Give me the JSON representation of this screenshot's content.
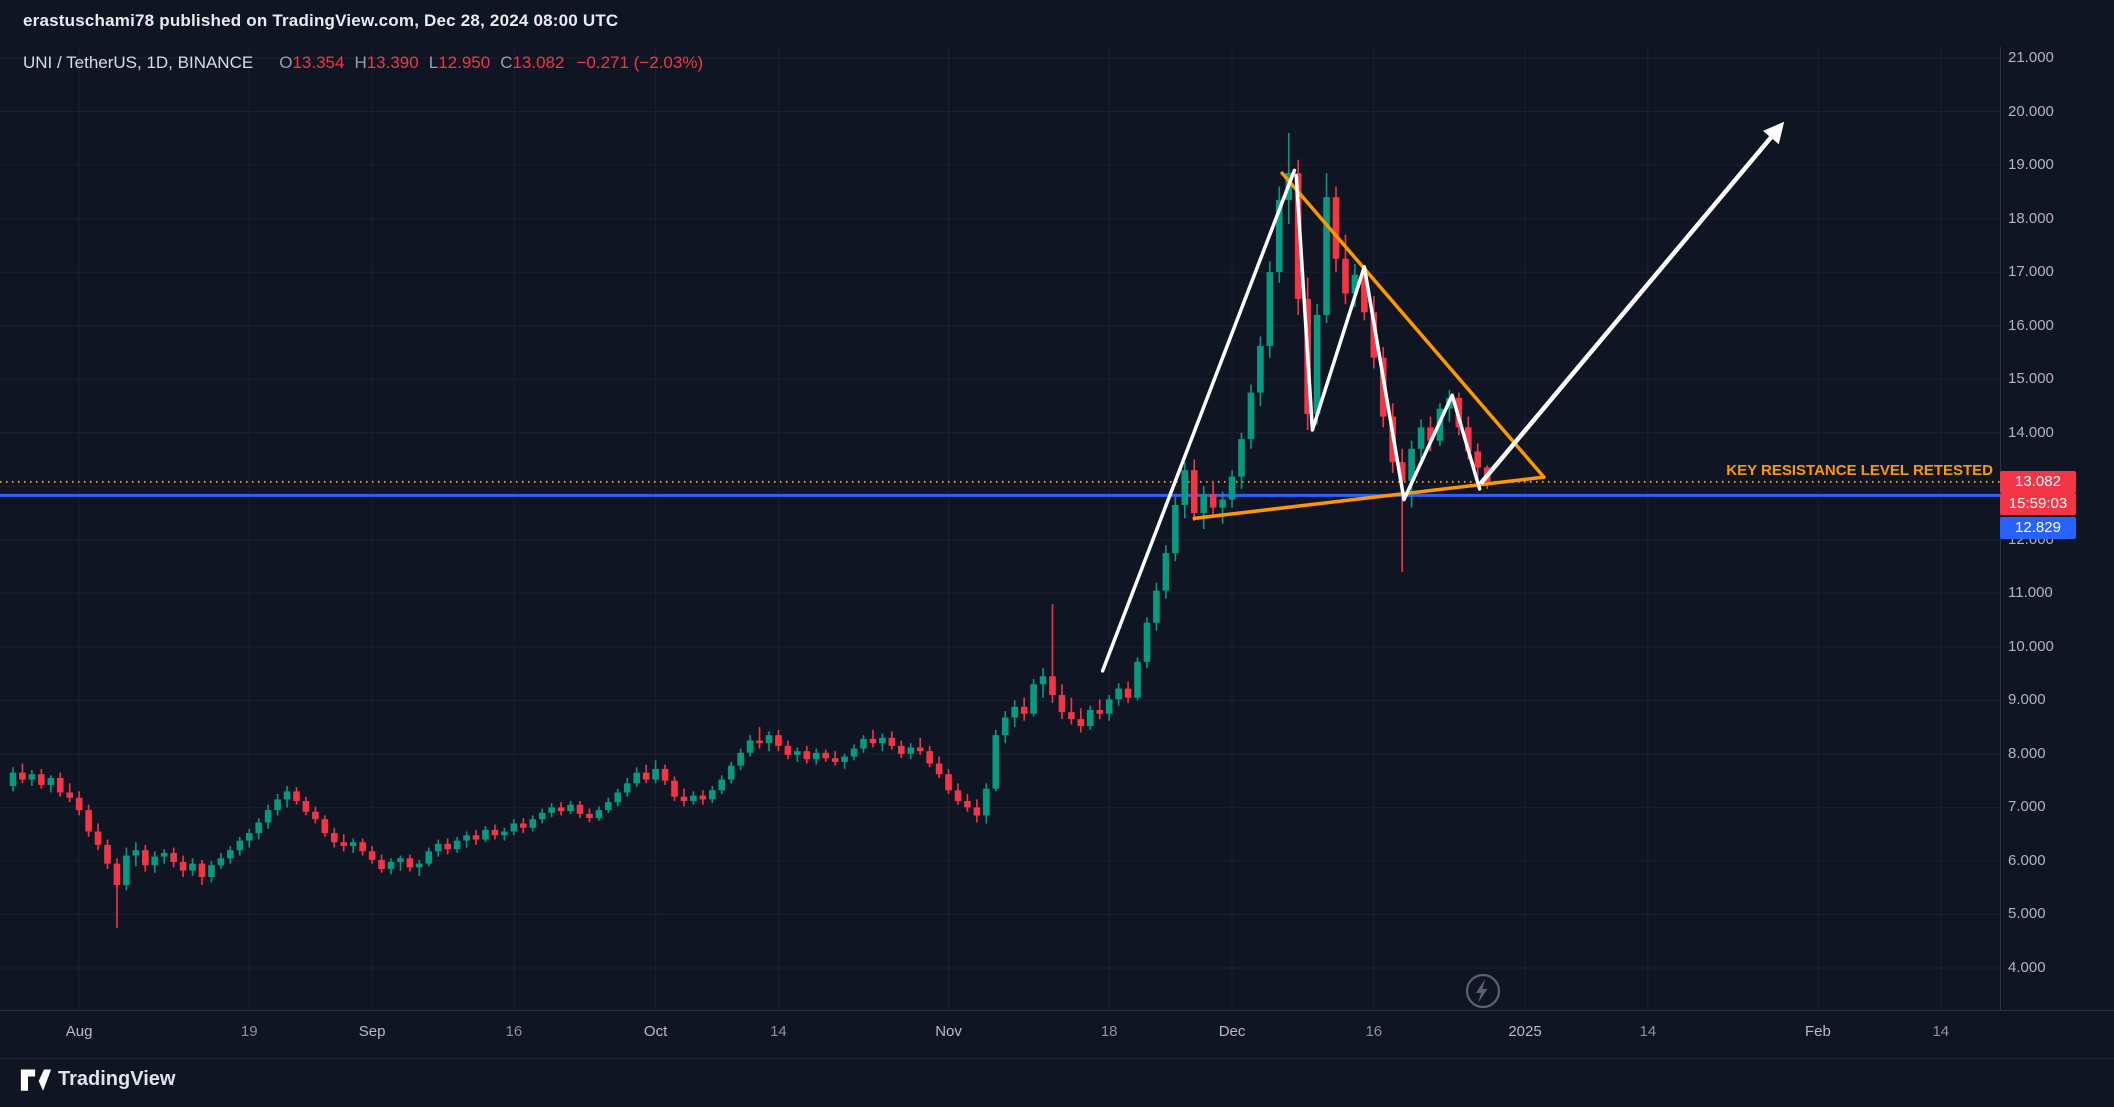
{
  "colors": {
    "background": "#0f1523",
    "up": "#089981",
    "down": "#f23645",
    "orange": "#ff9800",
    "blue": "#2962ff",
    "white": "#ffffff",
    "axis_text": "#b2b5be",
    "grid": "rgba(255,255,255,0.05)"
  },
  "header": {
    "publisher_line": "erastuschami78 published on TradingView.com, Dec 28, 2024 08:00 UTC"
  },
  "legend": {
    "symbol": "UNI / TetherUS, 1D, BINANCE",
    "o_label": "O",
    "o": "13.354",
    "h_label": "H",
    "h": "13.390",
    "l_label": "L",
    "l": "12.950",
    "c_label": "C",
    "c": "13.082",
    "change": "−0.271 (−2.03%)"
  },
  "chart_data": {
    "type": "candlestick",
    "symbol": "UNI/TetherUS",
    "exchange": "BINANCE",
    "timeframe": "1D",
    "ylim": [
      4,
      21
    ],
    "price_ticks": [
      21,
      20,
      19,
      18,
      17,
      16,
      15,
      14,
      13,
      12,
      11,
      10,
      9,
      8,
      7,
      6,
      5,
      4
    ],
    "time_ticks": [
      {
        "label": "Aug",
        "i": 7,
        "major": true
      },
      {
        "label": "19",
        "i": 25,
        "major": false
      },
      {
        "label": "Sep",
        "i": 38,
        "major": true
      },
      {
        "label": "16",
        "i": 53,
        "major": false
      },
      {
        "label": "Oct",
        "i": 68,
        "major": true
      },
      {
        "label": "14",
        "i": 81,
        "major": false
      },
      {
        "label": "Nov",
        "i": 99,
        "major": true
      },
      {
        "label": "18",
        "i": 116,
        "major": false
      },
      {
        "label": "Dec",
        "i": 129,
        "major": true
      },
      {
        "label": "16",
        "i": 144,
        "major": false
      },
      {
        "label": "2025",
        "i": 160,
        "major": true
      },
      {
        "label": "14",
        "i": 173,
        "major": false
      },
      {
        "label": "Feb",
        "i": 191,
        "major": true
      },
      {
        "label": "14",
        "i": 204,
        "major": false
      }
    ],
    "candles": [
      [
        7.4,
        7.75,
        7.3,
        7.65
      ],
      [
        7.65,
        7.82,
        7.45,
        7.52
      ],
      [
        7.52,
        7.7,
        7.4,
        7.62
      ],
      [
        7.62,
        7.72,
        7.35,
        7.42
      ],
      [
        7.42,
        7.6,
        7.28,
        7.55
      ],
      [
        7.55,
        7.65,
        7.2,
        7.28
      ],
      [
        7.28,
        7.45,
        7.1,
        7.18
      ],
      [
        7.18,
        7.3,
        6.85,
        6.95
      ],
      [
        6.95,
        7.05,
        6.45,
        6.55
      ],
      [
        6.55,
        6.7,
        6.2,
        6.3
      ],
      [
        6.3,
        6.4,
        5.85,
        5.95
      ],
      [
        5.95,
        6.05,
        4.75,
        5.55
      ],
      [
        5.55,
        6.25,
        5.45,
        6.1
      ],
      [
        6.1,
        6.35,
        5.9,
        6.2
      ],
      [
        6.2,
        6.3,
        5.8,
        5.92
      ],
      [
        5.92,
        6.18,
        5.78,
        6.08
      ],
      [
        6.08,
        6.22,
        5.95,
        6.15
      ],
      [
        6.15,
        6.25,
        5.88,
        5.98
      ],
      [
        5.98,
        6.1,
        5.7,
        5.82
      ],
      [
        5.82,
        6.05,
        5.72,
        5.95
      ],
      [
        5.95,
        6.02,
        5.55,
        5.7
      ],
      [
        5.7,
        6.0,
        5.6,
        5.92
      ],
      [
        5.92,
        6.15,
        5.85,
        6.05
      ],
      [
        6.05,
        6.28,
        5.95,
        6.2
      ],
      [
        6.2,
        6.45,
        6.1,
        6.38
      ],
      [
        6.38,
        6.6,
        6.25,
        6.52
      ],
      [
        6.52,
        6.8,
        6.4,
        6.72
      ],
      [
        6.72,
        7.05,
        6.6,
        6.95
      ],
      [
        6.95,
        7.25,
        6.85,
        7.15
      ],
      [
        7.15,
        7.4,
        7.0,
        7.3
      ],
      [
        7.3,
        7.38,
        7.05,
        7.12
      ],
      [
        7.12,
        7.2,
        6.85,
        6.92
      ],
      [
        6.92,
        7.02,
        6.7,
        6.78
      ],
      [
        6.78,
        6.85,
        6.45,
        6.52
      ],
      [
        6.52,
        6.62,
        6.25,
        6.35
      ],
      [
        6.35,
        6.5,
        6.18,
        6.28
      ],
      [
        6.28,
        6.42,
        6.15,
        6.35
      ],
      [
        6.35,
        6.42,
        6.1,
        6.18
      ],
      [
        6.18,
        6.28,
        5.95,
        6.02
      ],
      [
        6.02,
        6.12,
        5.78,
        5.85
      ],
      [
        5.85,
        6.05,
        5.75,
        5.98
      ],
      [
        5.98,
        6.1,
        5.82,
        6.05
      ],
      [
        6.05,
        6.12,
        5.8,
        5.88
      ],
      [
        5.88,
        6.02,
        5.72,
        5.95
      ],
      [
        5.95,
        6.25,
        5.9,
        6.18
      ],
      [
        6.18,
        6.4,
        6.08,
        6.32
      ],
      [
        6.32,
        6.42,
        6.12,
        6.22
      ],
      [
        6.22,
        6.45,
        6.15,
        6.38
      ],
      [
        6.38,
        6.55,
        6.25,
        6.48
      ],
      [
        6.48,
        6.58,
        6.3,
        6.4
      ],
      [
        6.4,
        6.65,
        6.35,
        6.58
      ],
      [
        6.58,
        6.68,
        6.4,
        6.48
      ],
      [
        6.48,
        6.62,
        6.38,
        6.55
      ],
      [
        6.55,
        6.78,
        6.48,
        6.7
      ],
      [
        6.7,
        6.8,
        6.52,
        6.62
      ],
      [
        6.62,
        6.85,
        6.55,
        6.78
      ],
      [
        6.78,
        6.98,
        6.7,
        6.9
      ],
      [
        6.9,
        7.08,
        6.82,
        7.0
      ],
      [
        7.0,
        7.1,
        6.85,
        6.93
      ],
      [
        6.93,
        7.12,
        6.88,
        7.05
      ],
      [
        7.05,
        7.12,
        6.8,
        6.88
      ],
      [
        6.88,
        6.98,
        6.72,
        6.8
      ],
      [
        6.8,
        7.02,
        6.75,
        6.95
      ],
      [
        6.95,
        7.18,
        6.9,
        7.1
      ],
      [
        7.1,
        7.35,
        7.02,
        7.28
      ],
      [
        7.28,
        7.55,
        7.2,
        7.45
      ],
      [
        7.45,
        7.75,
        7.38,
        7.65
      ],
      [
        7.65,
        7.8,
        7.45,
        7.52
      ],
      [
        7.52,
        7.88,
        7.45,
        7.72
      ],
      [
        7.72,
        7.8,
        7.42,
        7.5
      ],
      [
        7.5,
        7.58,
        7.12,
        7.2
      ],
      [
        7.2,
        7.35,
        7.02,
        7.12
      ],
      [
        7.12,
        7.3,
        7.05,
        7.22
      ],
      [
        7.22,
        7.32,
        7.05,
        7.15
      ],
      [
        7.15,
        7.4,
        7.08,
        7.32
      ],
      [
        7.32,
        7.6,
        7.25,
        7.52
      ],
      [
        7.52,
        7.85,
        7.45,
        7.78
      ],
      [
        7.78,
        8.1,
        7.7,
        8.02
      ],
      [
        8.02,
        8.35,
        7.95,
        8.25
      ],
      [
        8.25,
        8.5,
        8.1,
        8.2
      ],
      [
        8.2,
        8.42,
        8.05,
        8.35
      ],
      [
        8.35,
        8.45,
        8.05,
        8.15
      ],
      [
        8.15,
        8.25,
        7.9,
        7.98
      ],
      [
        7.98,
        8.12,
        7.85,
        8.05
      ],
      [
        8.05,
        8.15,
        7.82,
        7.9
      ],
      [
        7.9,
        8.1,
        7.8,
        8.02
      ],
      [
        8.02,
        8.08,
        7.85,
        7.92
      ],
      [
        7.92,
        8.05,
        7.78,
        7.85
      ],
      [
        7.85,
        8.0,
        7.72,
        7.95
      ],
      [
        7.95,
        8.18,
        7.88,
        8.1
      ],
      [
        8.1,
        8.35,
        8.02,
        8.28
      ],
      [
        8.28,
        8.45,
        8.12,
        8.2
      ],
      [
        8.2,
        8.38,
        8.05,
        8.3
      ],
      [
        8.3,
        8.42,
        8.08,
        8.15
      ],
      [
        8.15,
        8.25,
        7.92,
        8.0
      ],
      [
        8.0,
        8.2,
        7.9,
        8.12
      ],
      [
        8.12,
        8.3,
        7.98,
        8.05
      ],
      [
        8.05,
        8.15,
        7.75,
        7.82
      ],
      [
        7.82,
        7.95,
        7.55,
        7.62
      ],
      [
        7.62,
        7.72,
        7.25,
        7.32
      ],
      [
        7.32,
        7.45,
        7.05,
        7.12
      ],
      [
        7.12,
        7.25,
        6.92,
        7.0
      ],
      [
        7.0,
        7.15,
        6.72,
        6.85
      ],
      [
        6.85,
        7.45,
        6.7,
        7.35
      ],
      [
        7.35,
        8.45,
        7.3,
        8.35
      ],
      [
        8.35,
        8.8,
        8.2,
        8.68
      ],
      [
        8.68,
        9.0,
        8.5,
        8.88
      ],
      [
        8.88,
        9.05,
        8.62,
        8.75
      ],
      [
        8.75,
        9.4,
        8.7,
        9.3
      ],
      [
        9.3,
        9.6,
        9.05,
        9.45
      ],
      [
        9.45,
        10.8,
        8.95,
        9.1
      ],
      [
        9.1,
        9.3,
        8.65,
        8.78
      ],
      [
        8.78,
        9.05,
        8.55,
        8.65
      ],
      [
        8.65,
        8.85,
        8.4,
        8.52
      ],
      [
        8.52,
        8.9,
        8.45,
        8.82
      ],
      [
        8.82,
        9.02,
        8.65,
        8.75
      ],
      [
        8.75,
        9.1,
        8.62,
        9.02
      ],
      [
        9.02,
        9.32,
        8.9,
        9.22
      ],
      [
        9.22,
        9.35,
        8.95,
        9.05
      ],
      [
        9.05,
        9.8,
        9.0,
        9.72
      ],
      [
        9.72,
        10.55,
        9.6,
        10.45
      ],
      [
        10.45,
        11.2,
        10.3,
        11.05
      ],
      [
        11.05,
        11.9,
        10.9,
        11.75
      ],
      [
        11.75,
        12.8,
        11.6,
        12.65
      ],
      [
        12.65,
        13.45,
        12.4,
        13.3
      ],
      [
        13.3,
        13.5,
        12.35,
        12.5
      ],
      [
        12.5,
        13.0,
        12.2,
        12.85
      ],
      [
        12.85,
        13.1,
        12.45,
        12.6
      ],
      [
        12.6,
        12.9,
        12.3,
        12.75
      ],
      [
        12.75,
        13.3,
        12.6,
        13.18
      ],
      [
        13.18,
        14.0,
        12.95,
        13.88
      ],
      [
        13.88,
        14.9,
        13.7,
        14.75
      ],
      [
        14.75,
        15.8,
        14.5,
        15.62
      ],
      [
        15.62,
        17.2,
        15.4,
        17.0
      ],
      [
        17.0,
        18.6,
        16.8,
        18.35
      ],
      [
        18.35,
        19.6,
        17.9,
        18.85
      ],
      [
        18.85,
        19.1,
        16.2,
        16.5
      ],
      [
        16.5,
        16.9,
        14.05,
        14.35
      ],
      [
        14.35,
        16.4,
        14.15,
        16.2
      ],
      [
        16.2,
        18.85,
        16.05,
        18.4
      ],
      [
        18.4,
        18.6,
        17.0,
        17.25
      ],
      [
        17.25,
        17.7,
        16.4,
        16.6
      ],
      [
        16.6,
        17.15,
        16.35,
        16.95
      ],
      [
        16.95,
        17.1,
        16.1,
        16.25
      ],
      [
        16.25,
        16.55,
        15.2,
        15.4
      ],
      [
        15.4,
        15.6,
        14.1,
        14.3
      ],
      [
        14.3,
        14.55,
        13.25,
        13.45
      ],
      [
        13.45,
        13.7,
        11.4,
        13.1
      ],
      [
        13.1,
        13.85,
        12.6,
        13.7
      ],
      [
        13.7,
        14.25,
        13.5,
        14.1
      ],
      [
        14.1,
        14.3,
        13.65,
        13.85
      ],
      [
        13.85,
        14.55,
        13.75,
        14.45
      ],
      [
        14.45,
        14.8,
        14.2,
        14.65
      ],
      [
        14.65,
        14.75,
        13.95,
        14.1
      ],
      [
        14.1,
        14.3,
        13.5,
        13.65
      ],
      [
        13.65,
        13.8,
        13.15,
        13.35
      ],
      [
        13.354,
        13.39,
        12.95,
        13.082
      ]
    ],
    "levels": [
      {
        "price": 13.082,
        "color": "#ff9800",
        "style": "dotted",
        "label": "KEY RESISTANCE LEVEL RETESTED"
      },
      {
        "price": 12.829,
        "color": "#2962ff",
        "style": "solid",
        "label": ""
      }
    ],
    "drawings": {
      "trendline": {
        "from": {
          "i": 115.3,
          "p": 9.55
        },
        "to": {
          "i": 135.6,
          "p": 18.9
        }
      },
      "triangle_upper": {
        "from": {
          "i": 134.3,
          "p": 18.85
        },
        "to": {
          "i": 162.0,
          "p": 13.17
        }
      },
      "triangle_lower": {
        "from": {
          "i": 125.0,
          "p": 12.4
        },
        "to": {
          "i": 162.0,
          "p": 13.17
        }
      },
      "zigzag": [
        [
          135.8,
          18.8
        ],
        [
          137.5,
          14.05
        ],
        [
          143.0,
          17.1
        ],
        [
          147.2,
          12.75
        ],
        [
          152.3,
          14.7
        ],
        [
          155.2,
          12.95
        ]
      ],
      "arrow": {
        "from": {
          "i": 155.3,
          "p": 13.05
        },
        "to": {
          "i": 187.0,
          "p": 19.72
        }
      }
    },
    "axis_labels": {
      "last_price": "13.082",
      "countdown": "15:59:03",
      "level_price": "12.829"
    }
  },
  "footer": {
    "brand": "TradingView"
  }
}
